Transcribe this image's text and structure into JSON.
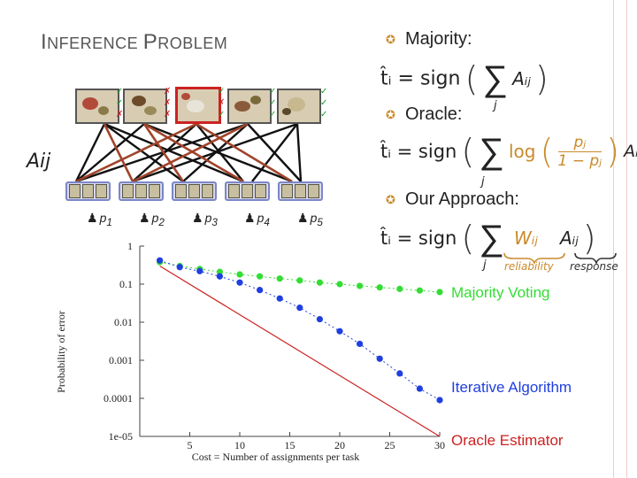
{
  "title": {
    "first_cap": "I",
    "first_rest": "NFERENCE ",
    "second_cap": "P",
    "second_rest": "ROBLEM"
  },
  "bipartite": {
    "matrix_label": "Aij",
    "workers": [
      {
        "p": "p",
        "sub": "1"
      },
      {
        "p": "p",
        "sub": "2"
      },
      {
        "p": "p",
        "sub": "3"
      },
      {
        "p": "p",
        "sub": "4"
      },
      {
        "p": "p",
        "sub": "5"
      }
    ]
  },
  "bullets": [
    {
      "label": "Majority:"
    },
    {
      "label": "Oracle:"
    },
    {
      "label": "Our Approach:"
    }
  ],
  "formulas": {
    "majority": {
      "lhs": "t̂ᵢ = sign",
      "sum": "∑",
      "index": "j",
      "term": "Aᵢⱼ"
    },
    "oracle": {
      "lhs": "t̂ᵢ = sign",
      "sum": "∑",
      "index": "j",
      "log": "log",
      "num": "pⱼ",
      "den": "1 − pⱼ",
      "term": "Aᵢⱼ"
    },
    "ours": {
      "lhs": "t̂ᵢ = sign",
      "sum": "∑",
      "index": "j",
      "w": "Wᵢⱼ",
      "a": "Aᵢⱼ",
      "w_note": "reliability",
      "a_note": "response"
    }
  },
  "chart_data": {
    "type": "line",
    "xlabel": "Cost = Number of assignments per task",
    "ylabel": "Probability of error",
    "x_ticks": [
      "5",
      "10",
      "15",
      "20",
      "25",
      "30"
    ],
    "y_ticks": [
      "1",
      "0.1",
      "0.01",
      "0.001",
      "0.0001",
      "1e-05"
    ],
    "y_scale": "log",
    "xlim": [
      0,
      30
    ],
    "ylim": [
      1e-05,
      1
    ],
    "series": [
      {
        "name": "Majority Voting",
        "color": "#33dd33",
        "x": [
          2,
          4,
          6,
          8,
          10,
          12,
          14,
          16,
          18,
          20,
          22,
          24,
          26,
          28,
          30
        ],
        "y": [
          0.38,
          0.3,
          0.25,
          0.21,
          0.18,
          0.16,
          0.14,
          0.125,
          0.11,
          0.1,
          0.09,
          0.082,
          0.075,
          0.068,
          0.062
        ]
      },
      {
        "name": "Iterative Algorithm",
        "color": "#1f3fdf",
        "x": [
          2,
          4,
          6,
          8,
          10,
          12,
          14,
          16,
          18,
          20,
          22,
          24,
          26,
          28,
          30
        ],
        "y": [
          0.42,
          0.28,
          0.22,
          0.16,
          0.11,
          0.07,
          0.042,
          0.024,
          0.012,
          0.0058,
          0.0027,
          0.0011,
          0.00045,
          0.00018,
          9e-05
        ]
      },
      {
        "name": "Oracle Estimator",
        "color": "#cc2222",
        "x": [
          2,
          30
        ],
        "y": [
          0.3,
          1e-05
        ]
      }
    ]
  },
  "colors": {
    "accent_bullet": "#c98a2b",
    "edge_red": "#a0442a",
    "edge_black": "#111111",
    "reliability": "#c98a2b"
  }
}
